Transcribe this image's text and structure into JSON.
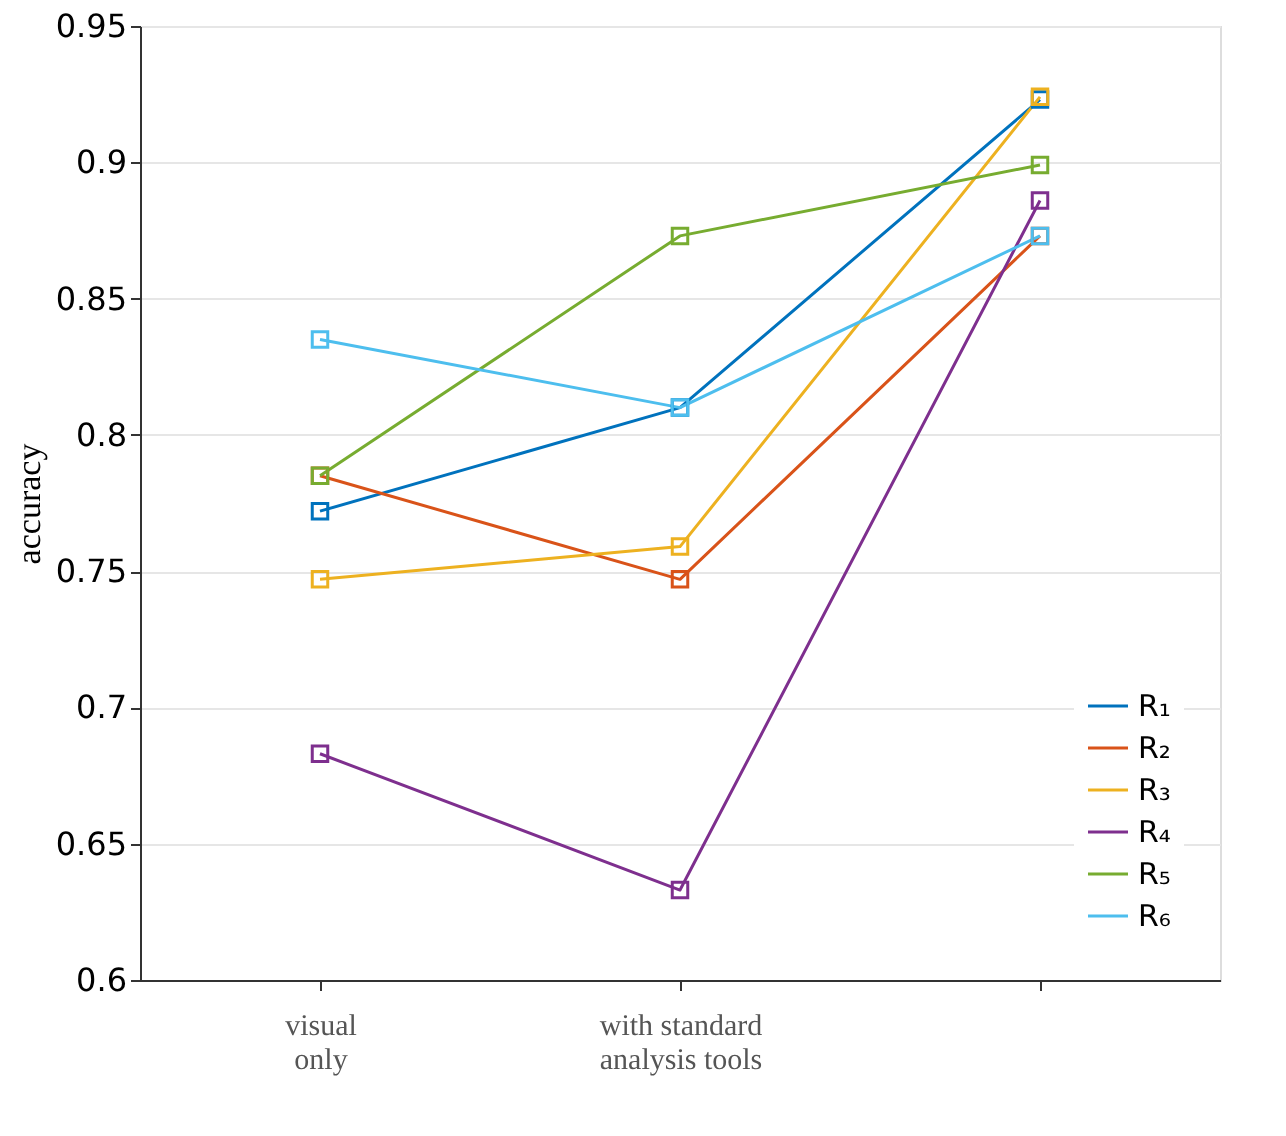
{
  "chart_data": {
    "type": "line",
    "ylabel": "accuracy",
    "categories": [
      "visual\nonly",
      "with standard\nanalysis tools",
      null
    ],
    "series": [
      {
        "name": "R₁",
        "color": "#0072bd",
        "values": [
          0.772,
          0.81,
          0.923
        ]
      },
      {
        "name": "R₂",
        "color": "#d95319",
        "values": [
          0.785,
          0.747,
          0.873
        ]
      },
      {
        "name": "R₃",
        "color": "#edb120",
        "values": [
          0.747,
          0.759,
          0.924
        ]
      },
      {
        "name": "R₄",
        "color": "#7e2f8e",
        "values": [
          0.683,
          0.633,
          0.886
        ]
      },
      {
        "name": "R₅",
        "color": "#77ac30",
        "values": [
          0.785,
          0.873,
          0.899
        ]
      },
      {
        "name": "R₆",
        "color": "#4dbeee",
        "values": [
          0.835,
          0.81,
          0.873
        ]
      }
    ],
    "ylim": [
      0.6,
      0.95
    ],
    "yticks": [
      0.6,
      0.65,
      0.7,
      0.75,
      0.8,
      0.85,
      0.9,
      0.95
    ],
    "grid": "y",
    "legend": "bottom right",
    "marker": "square",
    "line_style": "solid"
  }
}
